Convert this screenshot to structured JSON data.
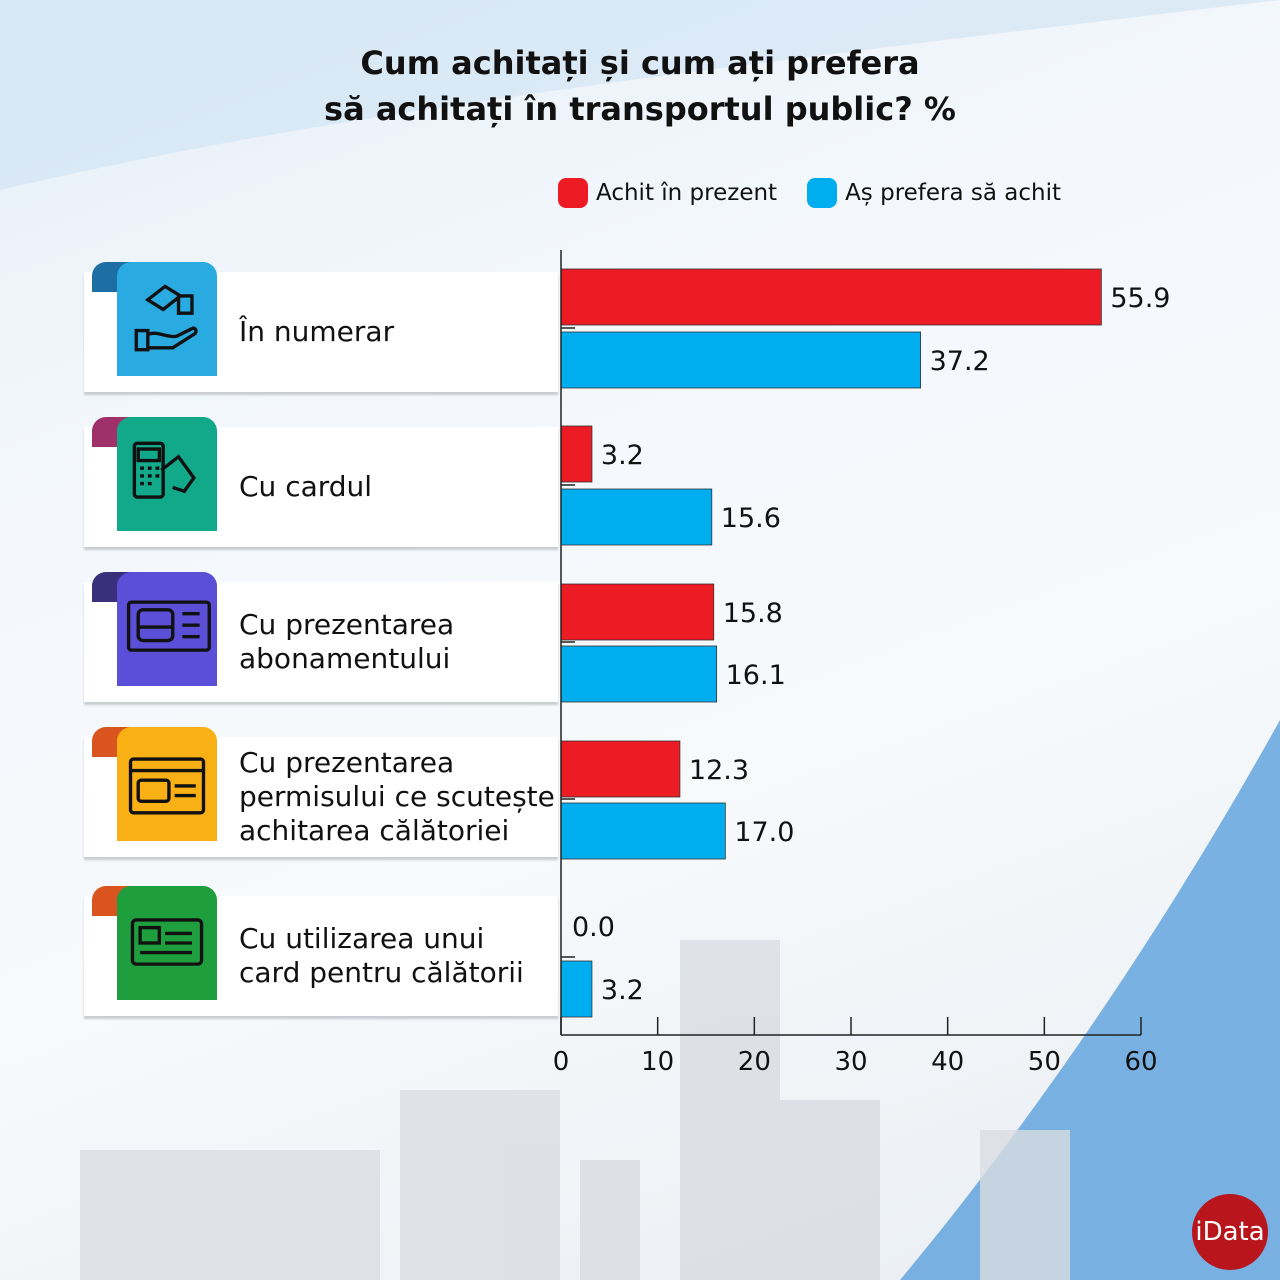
{
  "chart_data": {
    "type": "bar",
    "orientation": "horizontal",
    "title": "Cum achitați și cum ați prefera să achitați în transportul public? %",
    "title_lines": [
      "Cum achitați și cum ați prefera",
      "să achitați în transportul public? %"
    ],
    "categories": [
      "În numerar",
      "Cu cardul",
      "Cu prezentarea abonamentului",
      "Cu prezentarea permisului ce scutește achitarea călătoriei",
      "Cu utilizarea unui card pentru călătorii"
    ],
    "category_lines": [
      [
        "În numerar"
      ],
      [
        "Cu cardul"
      ],
      [
        "Cu prezentarea",
        "abonamentului"
      ],
      [
        "Cu prezentarea",
        "permisului ce scutește",
        "achitarea călătoriei"
      ],
      [
        "Cu utilizarea unui",
        "card pentru călătorii"
      ]
    ],
    "series": [
      {
        "name": "Achit în prezent",
        "color": "#ed1c24",
        "values": [
          55.9,
          3.2,
          15.8,
          12.3,
          0.0
        ],
        "labels": [
          "55.9",
          "3.2",
          "15.8",
          "12.3",
          "0.0"
        ]
      },
      {
        "name": "Aș prefera să achit",
        "color": "#00aeef",
        "values": [
          37.2,
          15.6,
          16.1,
          17.0,
          3.2
        ],
        "labels": [
          "37.2",
          "15.6",
          "16.1",
          "17.0",
          "3.2"
        ]
      }
    ],
    "xlim": [
      0,
      60
    ],
    "xticks": [
      "0",
      "10",
      "20",
      "30",
      "40",
      "50",
      "60"
    ],
    "legend_position": "top",
    "grid": false
  },
  "icons": [
    {
      "name": "cash-hand-icon",
      "color": "#29aae1",
      "tab": "#1d6fa3"
    },
    {
      "name": "card-terminal-icon",
      "color": "#12a88a",
      "tab": "#a0306a"
    },
    {
      "name": "bus-ticket-icon",
      "color": "#5a4fd6",
      "tab": "#3a2f7a"
    },
    {
      "name": "bus-pass-icon",
      "color": "#f9b015",
      "tab": "#d9541e"
    },
    {
      "name": "id-card-icon",
      "color": "#1f9e3e",
      "tab": "#d9541e"
    }
  ],
  "logo": "iData"
}
